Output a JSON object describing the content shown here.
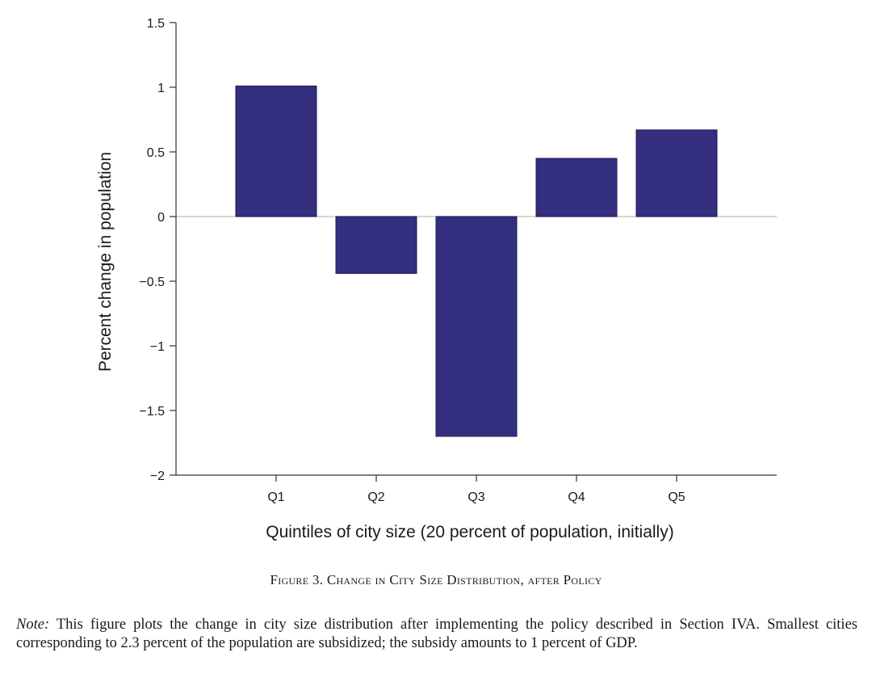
{
  "chart_data": {
    "type": "bar",
    "categories": [
      "Q1",
      "Q2",
      "Q3",
      "Q4",
      "Q5"
    ],
    "values": [
      1.01,
      -0.44,
      -1.7,
      0.45,
      0.67
    ],
    "title": "",
    "xlabel": "Quintiles of city size (20 percent of population, initially)",
    "ylabel": "Percent change in population",
    "ylim": [
      -2,
      1.5
    ],
    "yticks": [
      1.5,
      1,
      0.5,
      0,
      -0.5,
      -1,
      -1.5,
      -2
    ],
    "ytick_labels": [
      "1.5",
      "1",
      "0.5",
      "0",
      "−0.5",
      "−1",
      "−1.5",
      "−2"
    ],
    "bar_color": "#332e7e",
    "zero_line_color": "#c8c8c8",
    "grid": false
  },
  "caption": "Figure 3. Change in City Size Distribution, after Policy",
  "note": {
    "label": "Note:",
    "text": "This figure plots the change in city size distribution after implementing the policy described in Section IVA. Smallest cities corresponding to 2.3 percent of the population are subsidized; the subsidy amounts to 1 percent of GDP."
  }
}
